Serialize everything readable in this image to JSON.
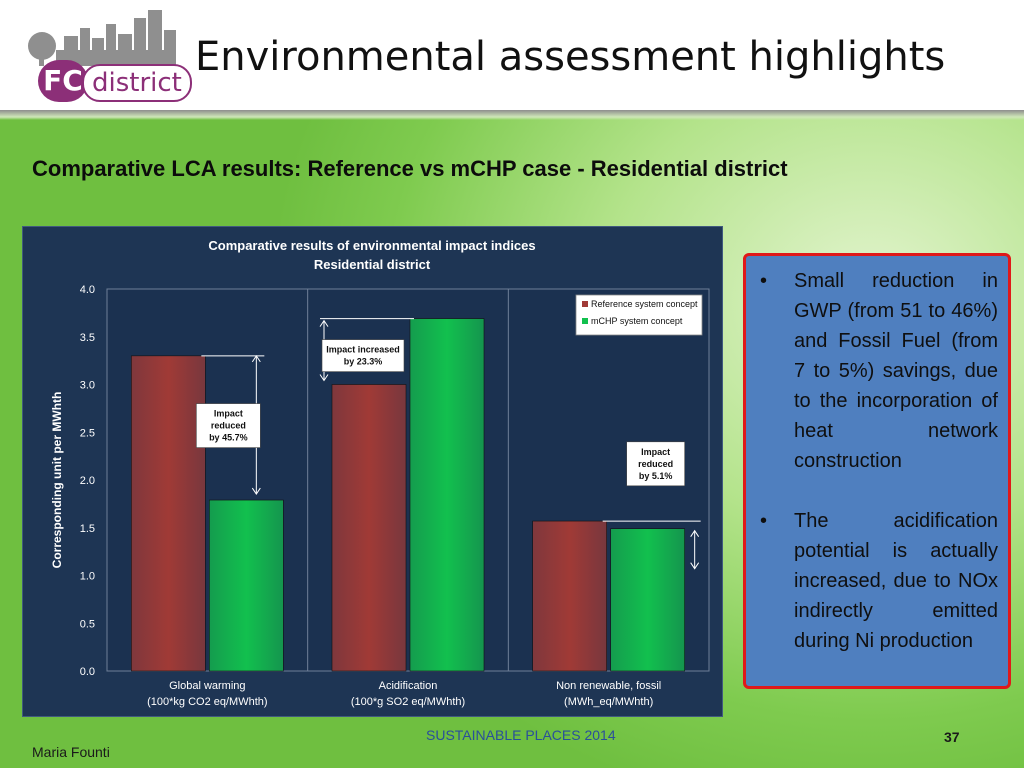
{
  "slide": {
    "title": "Environmental assessment highlights",
    "subtitle": "Comparative LCA results: Reference vs mCHP case - Residential district",
    "logo": {
      "fc": "FC",
      "district": "district"
    }
  },
  "chart_data": {
    "type": "bar",
    "title": "Comparative results of environmental impact indices",
    "subtitle": "Residential district",
    "ylabel": "Corresponding unit per MWhth",
    "ylim": [
      0,
      4.0
    ],
    "yticks": [
      "0.0",
      "0.5",
      "1.0",
      "1.5",
      "2.0",
      "2.5",
      "3.0",
      "3.5",
      "4.0"
    ],
    "categories": [
      [
        "Global warming",
        "(100*kg CO2 eq/MWhth)"
      ],
      [
        "Acidification",
        "(100*g SO2 eq/MWhth)"
      ],
      [
        "Non renewable, fossil",
        "(MWh_eq/MWhth)"
      ]
    ],
    "series": [
      {
        "name": "Reference system concept",
        "values": [
          3.3,
          3.0,
          1.57
        ],
        "color": "#a03a36"
      },
      {
        "name": "mCHP system concept",
        "values": [
          1.79,
          3.69,
          1.49
        ],
        "color": "#12c04e"
      }
    ],
    "grid": false,
    "legend": "top-right",
    "annotations": [
      {
        "lines": [
          "Impact",
          "reduced",
          "by 45.7%"
        ],
        "category": 0
      },
      {
        "lines": [
          "Impact increased",
          "by  23.3%"
        ],
        "category": 1
      },
      {
        "lines": [
          "Impact",
          "reduced",
          "by 5.1%"
        ],
        "category": 2
      }
    ]
  },
  "notes": [
    "Small reduction in GWP (from 51 to 46%) and Fossil Fuel (from 7 to 5%) savings, due to the incorporation of heat network construction",
    "The acidification potential is actually increased, due to NOx indirectly emitted during Ni production"
  ],
  "bullet_symbol": "•",
  "footer": {
    "center": "SUSTAINABLE PLACES 2014",
    "page": "37",
    "author": "Maria Founti"
  }
}
